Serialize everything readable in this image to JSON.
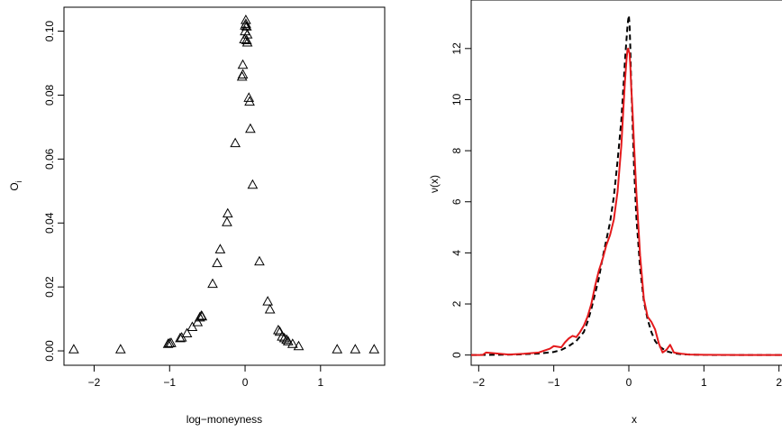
{
  "chart_data": [
    {
      "type": "scatter",
      "xlabel": "log−moneyness",
      "ylabel": "O",
      "ylabel_subscript": "i",
      "xlim": [
        -2.4,
        1.85
      ],
      "ylim": [
        -0.0045,
        0.1075
      ],
      "xticks": [
        -2,
        -1,
        0,
        1
      ],
      "yticks": [
        0.0,
        0.02,
        0.04,
        0.06,
        0.08,
        0.1
      ],
      "xtick_labels": [
        "−2",
        "−1",
        "0",
        "1"
      ],
      "ytick_labels": [
        "0.00",
        "0.02",
        "0.04",
        "0.06",
        "0.08",
        "0.10"
      ],
      "marker": "open-triangle",
      "grid": false,
      "points": [
        [
          -2.27,
          0.0005
        ],
        [
          -1.65,
          0.0005
        ],
        [
          -1.02,
          0.0022
        ],
        [
          -1.0,
          0.0024
        ],
        [
          -0.98,
          0.0025
        ],
        [
          -0.86,
          0.004
        ],
        [
          -0.84,
          0.0042
        ],
        [
          -0.77,
          0.0055
        ],
        [
          -0.7,
          0.0075
        ],
        [
          -0.63,
          0.009
        ],
        [
          -0.6,
          0.0105
        ],
        [
          -0.58,
          0.011
        ],
        [
          -0.57,
          0.0108
        ],
        [
          -0.43,
          0.021
        ],
        [
          -0.37,
          0.0275
        ],
        [
          -0.33,
          0.0318
        ],
        [
          -0.24,
          0.0403
        ],
        [
          -0.23,
          0.043
        ],
        [
          -0.13,
          0.065
        ],
        [
          -0.04,
          0.0858
        ],
        [
          -0.03,
          0.0895
        ],
        [
          -0.03,
          0.0865
        ],
        [
          -0.01,
          0.0975
        ],
        [
          0.0,
          0.1
        ],
        [
          0.0,
          0.1018
        ],
        [
          0.01,
          0.1035
        ],
        [
          0.01,
          0.1023
        ],
        [
          0.02,
          0.1015
        ],
        [
          0.02,
          0.0972
        ],
        [
          0.03,
          0.0965
        ],
        [
          0.03,
          0.099
        ],
        [
          0.05,
          0.0792
        ],
        [
          0.06,
          0.078
        ],
        [
          0.07,
          0.0695
        ],
        [
          0.1,
          0.052
        ],
        [
          0.19,
          0.028
        ],
        [
          0.3,
          0.0155
        ],
        [
          0.33,
          0.013
        ],
        [
          0.44,
          0.0065
        ],
        [
          0.46,
          0.006
        ],
        [
          0.49,
          0.0045
        ],
        [
          0.52,
          0.004
        ],
        [
          0.55,
          0.0035
        ],
        [
          0.57,
          0.003
        ],
        [
          0.63,
          0.0022
        ],
        [
          0.71,
          0.0015
        ],
        [
          1.22,
          0.0005
        ],
        [
          1.46,
          0.0005
        ],
        [
          1.71,
          0.0005
        ]
      ]
    },
    {
      "type": "line",
      "xlabel": "x",
      "ylabel": "ν(x)",
      "xlim": [
        -2.1,
        2.1
      ],
      "ylim": [
        -0.4,
        13.9
      ],
      "xticks": [
        -2,
        -1,
        0,
        1,
        2
      ],
      "yticks": [
        0,
        2,
        4,
        6,
        8,
        10,
        12
      ],
      "xtick_labels": [
        "−2",
        "−1",
        "0",
        "1",
        "2"
      ],
      "ytick_labels": [
        "0",
        "2",
        "4",
        "6",
        "8",
        "10",
        "12"
      ],
      "grid": false,
      "series": [
        {
          "style": "dashed",
          "color": "#000000",
          "x": [
            -2.1,
            -1.5,
            -1.2,
            -1.0,
            -0.9,
            -0.8,
            -0.7,
            -0.6,
            -0.55,
            -0.5,
            -0.45,
            -0.4,
            -0.35,
            -0.3,
            -0.25,
            -0.2,
            -0.15,
            -0.1,
            -0.07,
            -0.05,
            -0.03,
            -0.02,
            -0.01,
            0.0,
            0.01,
            0.02,
            0.03,
            0.05,
            0.07,
            0.1,
            0.15,
            0.2,
            0.25,
            0.3,
            0.35,
            0.4,
            0.5,
            0.6,
            0.7,
            0.9,
            1.2,
            2.1
          ],
          "y": [
            0.0,
            0.02,
            0.06,
            0.12,
            0.2,
            0.35,
            0.55,
            0.9,
            1.3,
            1.8,
            2.4,
            3.0,
            3.8,
            4.5,
            5.2,
            6.2,
            7.6,
            9.2,
            10.6,
            11.6,
            12.4,
            12.8,
            13.1,
            13.3,
            12.9,
            12.0,
            10.8,
            9.0,
            7.3,
            5.4,
            3.4,
            2.1,
            1.4,
            0.9,
            0.55,
            0.35,
            0.15,
            0.07,
            0.03,
            0.01,
            0.0,
            0.0
          ]
        },
        {
          "style": "solid",
          "color": "#e41a1c",
          "x": [
            -2.1,
            -1.95,
            -1.9,
            -1.6,
            -1.4,
            -1.2,
            -1.05,
            -1.0,
            -0.9,
            -0.85,
            -0.8,
            -0.75,
            -0.7,
            -0.65,
            -0.6,
            -0.55,
            -0.5,
            -0.45,
            -0.4,
            -0.35,
            -0.3,
            -0.25,
            -0.2,
            -0.15,
            -0.1,
            -0.07,
            -0.05,
            -0.03,
            -0.02,
            -0.01,
            0.0,
            0.01,
            0.02,
            0.03,
            0.05,
            0.07,
            0.1,
            0.15,
            0.2,
            0.25,
            0.3,
            0.35,
            0.4,
            0.45,
            0.5,
            0.55,
            0.6,
            0.7,
            0.8,
            1.0,
            1.5,
            2.1
          ],
          "y": [
            0.0,
            0.0,
            0.1,
            0.02,
            0.05,
            0.1,
            0.25,
            0.35,
            0.3,
            0.5,
            0.65,
            0.75,
            0.7,
            0.9,
            1.15,
            1.5,
            2.0,
            2.7,
            3.3,
            3.75,
            4.3,
            4.7,
            5.3,
            6.4,
            8.2,
            9.8,
            10.8,
            11.6,
            11.9,
            12.0,
            11.9,
            11.8,
            11.3,
            10.6,
            9.5,
            8.2,
            6.4,
            3.9,
            2.2,
            1.5,
            1.3,
            1.0,
            0.45,
            0.1,
            0.2,
            0.4,
            0.1,
            0.05,
            0.02,
            0.01,
            0.0,
            0.0
          ]
        }
      ]
    }
  ]
}
